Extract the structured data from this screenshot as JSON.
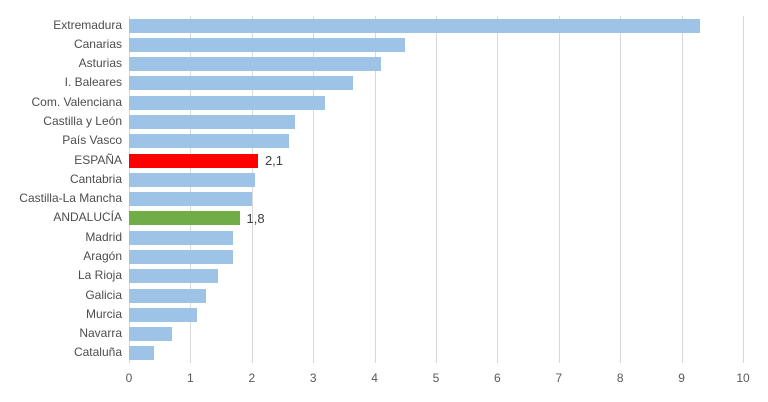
{
  "chart_data": {
    "type": "bar",
    "orientation": "horizontal",
    "title": "",
    "xlabel": "",
    "ylabel": "",
    "xlim": [
      0,
      10
    ],
    "x_ticks": [
      "0",
      "1",
      "2",
      "3",
      "4",
      "5",
      "6",
      "7",
      "8",
      "9",
      "10"
    ],
    "grid": true,
    "legend": false,
    "categories": [
      "Extremadura",
      "Canarias",
      "Asturias",
      "I. Baleares",
      "Com. Valenciana",
      "Castilla y León",
      "País Vasco",
      "ESPAÑA",
      "Cantabria",
      "Castilla-La Mancha",
      "ANDALUCÍA",
      "Madrid",
      "Aragón",
      "La Rioja",
      "Galicia",
      "Murcia",
      "Navarra",
      "Cataluña"
    ],
    "values": [
      9.3,
      4.5,
      4.1,
      3.65,
      3.2,
      2.7,
      2.6,
      2.1,
      2.05,
      2.0,
      1.8,
      1.7,
      1.7,
      1.45,
      1.25,
      1.1,
      0.7,
      0.4
    ],
    "data_labels": {
      "ESPAÑA": "2,1",
      "ANDALUCÍA": "1,8"
    },
    "colors": {
      "bar_default": "#9DC3E6",
      "highlights": {
        "ESPAÑA": "#FF0000",
        "ANDALUCÍA": "#70AD47"
      },
      "gridline": "#D9D9D9",
      "axis_text": "#595959",
      "category_text": "#4D4D4D",
      "data_label_text": "#404040"
    }
  }
}
